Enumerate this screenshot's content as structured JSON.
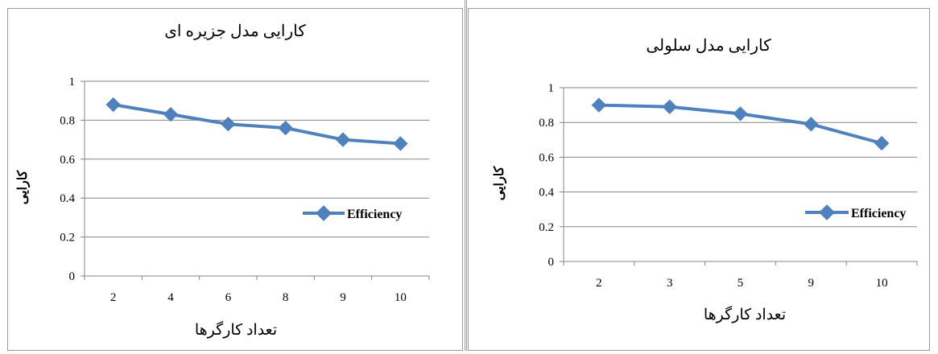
{
  "chart_data": [
    {
      "type": "line",
      "title": "کارایی مدل جزیره ای",
      "xlabel": "تعداد کارگرها",
      "ylabel": "کارایی",
      "categories": [
        "2",
        "4",
        "6",
        "8",
        "9",
        "10"
      ],
      "series": [
        {
          "name": "Efficiency",
          "values": [
            0.88,
            0.83,
            0.78,
            0.76,
            0.7,
            0.68
          ]
        }
      ],
      "yticks": [
        "0",
        "0.2",
        "0.4",
        "0.6",
        "0.8",
        "1"
      ],
      "ylim": [
        0,
        1
      ],
      "grid": true,
      "legend": "right",
      "color": "#4f81bd"
    },
    {
      "type": "line",
      "title": "کارایی مدل سلولی",
      "xlabel": "تعداد کارگرها",
      "ylabel": "کارایی",
      "categories": [
        "2",
        "3",
        "5",
        "9",
        "10"
      ],
      "series": [
        {
          "name": "Efficiency",
          "values": [
            0.9,
            0.89,
            0.85,
            0.79,
            0.68
          ]
        }
      ],
      "yticks": [
        "0",
        "0.2",
        "0.4",
        "0.6",
        "0.8",
        "1"
      ],
      "ylim": [
        0,
        1
      ],
      "grid": true,
      "legend": "right",
      "color": "#4f81bd"
    }
  ]
}
